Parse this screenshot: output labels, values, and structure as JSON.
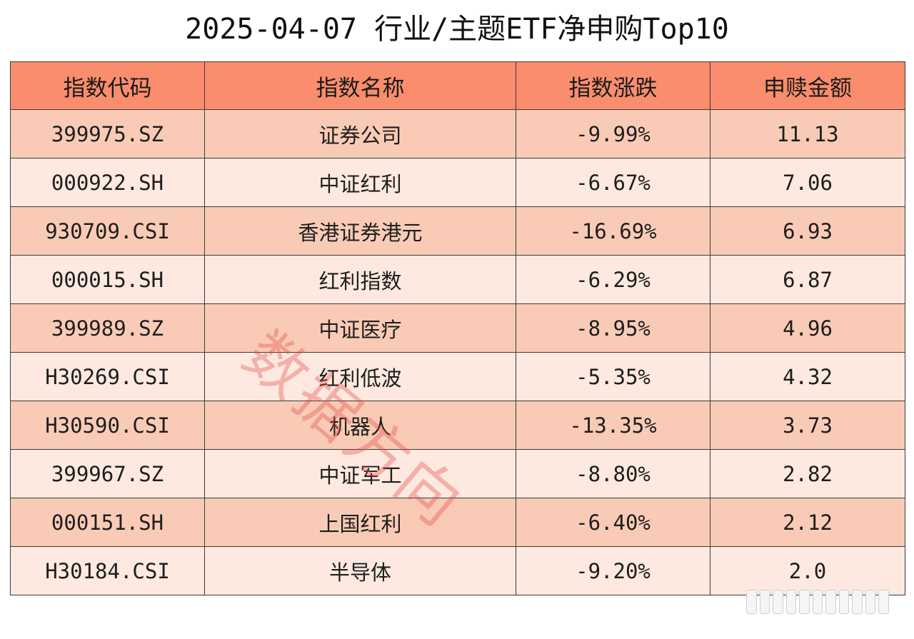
{
  "title": "2025-04-07 行业/主题ETF净申购Top10",
  "headers": [
    "指数代码",
    "指数名称",
    "指数涨跌",
    "申赎金额"
  ],
  "rows": [
    {
      "code": "399975.SZ",
      "name": "证券公司",
      "change": "-9.99%",
      "amount": "11.13"
    },
    {
      "code": "000922.SH",
      "name": "中证红利",
      "change": "-6.67%",
      "amount": "7.06"
    },
    {
      "code": "930709.CSI",
      "name": "香港证券港元",
      "change": "-16.69%",
      "amount": "6.93"
    },
    {
      "code": "000015.SH",
      "name": "红利指数",
      "change": "-6.29%",
      "amount": "6.87"
    },
    {
      "code": "399989.SZ",
      "name": "中证医疗",
      "change": "-8.95%",
      "amount": "4.96"
    },
    {
      "code": "H30269.CSI",
      "name": "红利低波",
      "change": "-5.35%",
      "amount": "4.32"
    },
    {
      "code": "H30590.CSI",
      "name": "机器人",
      "change": "-13.35%",
      "amount": "3.73"
    },
    {
      "code": "399967.SZ",
      "name": "中证军工",
      "change": "-8.80%",
      "amount": "2.82"
    },
    {
      "code": "000151.SH",
      "name": "上国红利",
      "change": "-6.40%",
      "amount": "2.12"
    },
    {
      "code": "H30184.CSI",
      "name": "半导体",
      "change": "-9.20%",
      "amount": "2.0"
    }
  ],
  "watermark": "数据方向",
  "colors": {
    "header_bg": "#f98d6d",
    "row_odd_bg": "#f9cbb6",
    "row_even_bg": "#fde9df",
    "watermark": "#e64646"
  }
}
